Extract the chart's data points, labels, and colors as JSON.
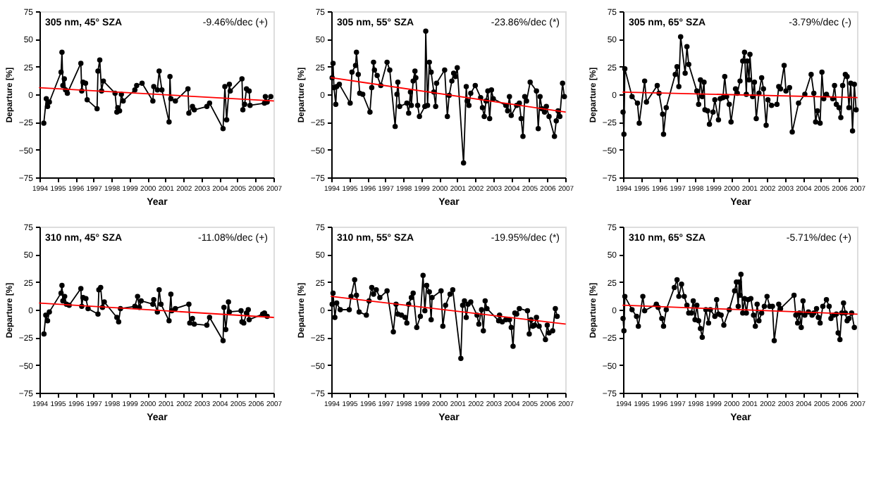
{
  "chart_data": [
    {
      "type": "line",
      "title": "305 nm, 45° SZA",
      "annotations": [
        "-9.46%/dec (+)"
      ],
      "xlabel": "Year",
      "ylabel": "Departure [%]",
      "xlim": [
        1994,
        2007
      ],
      "xticks": [
        1994,
        1995,
        1996,
        1997,
        1998,
        1999,
        2000,
        2001,
        2002,
        2003,
        2004,
        2005,
        2006,
        2007
      ],
      "ylim": [
        -75,
        75
      ],
      "yticks": [
        -75,
        -50,
        -25,
        0,
        25,
        50,
        75
      ],
      "grid": false,
      "legend": false,
      "series": [
        {
          "color": "#000000",
          "marker": "circle",
          "line_style": "solid",
          "x": [
            1994.24,
            1994.38,
            1994.45,
            1994.55,
            1995.2,
            1995.25,
            1995.3,
            1995.38,
            1995.45,
            1995.55,
            1996.3,
            1996.35,
            1996.42,
            1996.56,
            1996.65,
            1997.2,
            1997.25,
            1997.35,
            1997.45,
            1997.55,
            1998.2,
            1998.3,
            1998.35,
            1998.45,
            1998.55,
            1998.65,
            1999.3,
            1999.4,
            1999.7,
            2000.3,
            2000.35,
            2000.55,
            2000.65,
            2000.8,
            2001.2,
            2001.25,
            2001.3,
            2001.55,
            2002.25,
            2002.3,
            2002.5,
            2002.6,
            2003.3,
            2003.45,
            2004.2,
            2004.3,
            2004.4,
            2004.55,
            2004.6,
            2005.25,
            2005.3,
            2005.4,
            2005.5,
            2005.65,
            2005.7,
            2006.5,
            2006.55,
            2006.65,
            2006.85
          ],
          "values": [
            -26,
            -4,
            -11,
            -7,
            20,
            38,
            8,
            14,
            4,
            1,
            28,
            3,
            11,
            10,
            -5,
            -13,
            21,
            31,
            3,
            12,
            1,
            -16,
            -12,
            -15,
            0,
            -6,
            4,
            8,
            10,
            -6,
            7,
            4,
            21,
            4,
            -25,
            16,
            -4,
            -6,
            5,
            -17,
            -11,
            -14,
            -11,
            -8,
            -31,
            7,
            -23,
            9,
            3,
            14,
            -14,
            -9,
            5,
            3,
            -10,
            -8,
            -2,
            -7,
            -2
          ]
        },
        {
          "type": "line",
          "color": "#ff0000",
          "marker": "none",
          "x": [
            1994,
            2007
          ],
          "values": [
            6,
            -6
          ]
        }
      ]
    },
    {
      "type": "line",
      "title": "305 nm, 55° SZA",
      "annotations": [
        "-23.86%/dec (*)"
      ],
      "xlabel": "Year",
      "ylabel": "Departure [%]",
      "xlim": [
        1994,
        2007
      ],
      "xticks": [
        1994,
        1995,
        1996,
        1997,
        1998,
        1999,
        2000,
        2001,
        2002,
        2003,
        2004,
        2005,
        2006,
        2007
      ],
      "ylim": [
        -75,
        75
      ],
      "yticks": [
        -75,
        -50,
        -25,
        0,
        25,
        50,
        75
      ],
      "grid": false,
      "legend": false,
      "series": [
        {
          "color": "#000000",
          "marker": "circle",
          "line_style": "solid",
          "x": [
            1994.05,
            1994.1,
            1994.15,
            1994.25,
            1994.3,
            1994.45,
            1995.05,
            1995.15,
            1995.35,
            1995.4,
            1995.5,
            1995.58,
            1995.75,
            1996.15,
            1996.25,
            1996.35,
            1996.4,
            1996.55,
            1996.75,
            1997.1,
            1997.25,
            1997.55,
            1997.65,
            1997.7,
            1997.8,
            1998.2,
            1998.3,
            1998.4,
            1998.45,
            1998.55,
            1998.65,
            1998.7,
            1998.8,
            1998.9,
            1999.2,
            1999.25,
            1999.35,
            1999.45,
            1999.55,
            1999.7,
            1999.8,
            1999.85,
            2000.3,
            2000.45,
            2000.55,
            2000.7,
            2000.8,
            2000.9,
            2001.0,
            2001.35,
            2001.5,
            2001.55,
            2001.65,
            2001.75,
            2002.0,
            2002.3,
            2002.4,
            2002.5,
            2002.6,
            2002.7,
            2002.8,
            2002.9,
            2003.0,
            2003.7,
            2003.8,
            2003.9,
            2004.0,
            2004.3,
            2004.45,
            2004.55,
            2004.65,
            2004.75,
            2004.85,
            2005.05,
            2005.4,
            2005.5,
            2005.6,
            2005.7,
            2005.85,
            2005.95,
            2006.1,
            2006.4,
            2006.5,
            2006.6,
            2006.7,
            2006.85,
            2006.95
          ],
          "values": [
            15,
            28,
            6,
            -9,
            7,
            9,
            -8,
            20,
            26,
            38,
            18,
            1,
            0,
            -16,
            6,
            29,
            22,
            17,
            8,
            29,
            22,
            -29,
            0,
            11,
            -11,
            -8,
            -17,
            2,
            -10,
            12,
            21,
            15,
            -10,
            -20,
            -11,
            57,
            -10,
            29,
            20,
            2,
            -11,
            10,
            22,
            -20,
            -1,
            12,
            19,
            16,
            24,
            -62,
            7,
            -6,
            -10,
            1,
            8,
            -3,
            -12,
            -20,
            -6,
            3,
            -22,
            4,
            -4,
            -10,
            -15,
            -2,
            -19,
            -10,
            -8,
            -22,
            -38,
            -2,
            -6,
            11,
            3,
            -31,
            -2,
            -13,
            -16,
            -11,
            -20,
            -38,
            -24,
            -15,
            -20,
            10,
            -2
          ]
        },
        {
          "type": "line",
          "color": "#ff0000",
          "marker": "none",
          "x": [
            1994,
            2007
          ],
          "values": [
            15,
            -16
          ]
        }
      ]
    },
    {
      "type": "line",
      "title": "305 nm, 65° SZA",
      "annotations": [
        "-3.79%/dec (-)"
      ],
      "xlabel": "Year",
      "ylabel": "Departure [%]",
      "xlim": [
        1994,
        2007
      ],
      "xticks": [
        1994,
        1995,
        1996,
        1997,
        1998,
        1999,
        2000,
        2001,
        2002,
        2003,
        2004,
        2005,
        2006,
        2007
      ],
      "ylim": [
        -75,
        75
      ],
      "yticks": [
        -75,
        -50,
        -25,
        0,
        25,
        50,
        75
      ],
      "grid": false,
      "legend": false,
      "series": [
        {
          "color": "#000000",
          "marker": "circle",
          "line_style": "solid",
          "x": [
            1994.0,
            1994.05,
            1994.1,
            1994.5,
            1994.8,
            1994.9,
            1995.2,
            1995.3,
            1995.9,
            1996.0,
            1996.2,
            1996.25,
            1996.4,
            1996.9,
            1997.0,
            1997.1,
            1997.2,
            1997.45,
            1997.55,
            1997.65,
            1998.1,
            1998.2,
            1998.3,
            1998.4,
            1998.5,
            1998.55,
            1998.7,
            1998.8,
            1999.0,
            1999.1,
            1999.3,
            1999.4,
            1999.55,
            1999.65,
            1999.75,
            1999.9,
            2000.0,
            2000.25,
            2000.35,
            2000.5,
            2000.65,
            2000.75,
            2000.85,
            2000.9,
            2001.0,
            2001.05,
            2001.2,
            2001.3,
            2001.4,
            2001.55,
            2001.7,
            2001.8,
            2001.95,
            2002.05,
            2002.25,
            2002.55,
            2002.65,
            2002.75,
            2002.95,
            2003.05,
            2003.25,
            2003.4,
            2003.75,
            2004.1,
            2004.45,
            2004.6,
            2004.7,
            2004.8,
            2004.95,
            2005.05,
            2005.15,
            2005.3,
            2005.65,
            2005.75,
            2005.85,
            2006.0,
            2006.1,
            2006.2,
            2006.35,
            2006.45,
            2006.55,
            2006.65,
            2006.75,
            2006.85,
            2006.95
          ],
          "values": [
            -16,
            -36,
            23,
            -2,
            -8,
            -26,
            12,
            -7,
            8,
            1,
            -18,
            -36,
            -12,
            18,
            25,
            7,
            52,
            19,
            43,
            27,
            3,
            -9,
            13,
            -2,
            11,
            -14,
            -15,
            -27,
            -16,
            -5,
            -23,
            -4,
            -3,
            16,
            -2,
            -9,
            -25,
            5,
            1,
            12,
            30,
            38,
            0,
            30,
            13,
            36,
            -2,
            11,
            -22,
            1,
            15,
            5,
            -28,
            -5,
            -10,
            -9,
            7,
            5,
            26,
            3,
            6,
            -34,
            -8,
            0,
            18,
            1,
            -25,
            -15,
            -26,
            20,
            -4,
            0,
            -4,
            8,
            -9,
            -12,
            -21,
            8,
            18,
            16,
            -12,
            10,
            -33,
            9,
            -14
          ]
        },
        {
          "type": "line",
          "color": "#ff0000",
          "marker": "none",
          "x": [
            1994,
            2007
          ],
          "values": [
            2,
            -3
          ]
        }
      ]
    },
    {
      "type": "line",
      "title": "310 nm, 45° SZA",
      "annotations": [
        "-11.08%/dec (+)"
      ],
      "xlabel": "Year",
      "ylabel": "Departure [%]",
      "xlim": [
        1994,
        2007
      ],
      "xticks": [
        1994,
        1995,
        1996,
        1997,
        1998,
        1999,
        2000,
        2001,
        2002,
        2003,
        2004,
        2005,
        2006,
        2007
      ],
      "ylim": [
        -75,
        75
      ],
      "yticks": [
        -75,
        -50,
        -25,
        0,
        25,
        50,
        75
      ],
      "grid": false,
      "legend": false,
      "series": [
        {
          "color": "#000000",
          "marker": "circle",
          "line_style": "solid",
          "x": [
            1994.25,
            1994.35,
            1994.45,
            1994.55,
            1995.2,
            1995.25,
            1995.3,
            1995.4,
            1995.5,
            1995.65,
            1996.3,
            1996.35,
            1996.42,
            1996.58,
            1996.7,
            1997.25,
            1997.3,
            1997.4,
            1997.5,
            1997.6,
            1998.3,
            1998.4,
            1998.5,
            1999.3,
            1999.45,
            1999.55,
            1999.65,
            2000.3,
            2000.35,
            2000.55,
            2000.65,
            2000.75,
            2001.2,
            2001.3,
            2001.35,
            2001.55,
            2002.3,
            2002.35,
            2002.5,
            2002.6,
            2003.3,
            2003.45,
            2004.2,
            2004.25,
            2004.35,
            2004.5,
            2004.55,
            2005.2,
            2005.25,
            2005.35,
            2005.5,
            2005.6,
            2005.65,
            2006.4,
            2006.5,
            2006.65
          ],
          "values": [
            -22,
            -5,
            -10,
            -2,
            15,
            22,
            8,
            12,
            5,
            4,
            19,
            3,
            11,
            10,
            1,
            -4,
            18,
            20,
            2,
            7,
            -7,
            -11,
            1,
            3,
            12,
            2,
            8,
            5,
            9,
            -2,
            18,
            5,
            -10,
            14,
            -1,
            1,
            5,
            -12,
            -8,
            -13,
            -14,
            -7,
            -28,
            2,
            -18,
            7,
            -2,
            -1,
            -11,
            -12,
            -3,
            0,
            -9,
            -4,
            -3,
            -6
          ]
        },
        {
          "type": "line",
          "color": "#ff0000",
          "marker": "none",
          "x": [
            1994,
            2007
          ],
          "values": [
            6,
            -7
          ]
        }
      ]
    },
    {
      "type": "line",
      "title": "310 nm, 55° SZA",
      "annotations": [
        "-19.95%/dec (*)"
      ],
      "xlabel": "Year",
      "ylabel": "Departure [%]",
      "xlim": [
        1994,
        2007
      ],
      "xticks": [
        1994,
        1995,
        1996,
        1997,
        1998,
        1999,
        2000,
        2001,
        2002,
        2003,
        2004,
        2005,
        2006,
        2007
      ],
      "ylim": [
        -75,
        75
      ],
      "yticks": [
        -75,
        -50,
        -25,
        0,
        25,
        50,
        75
      ],
      "grid": false,
      "legend": false,
      "series": [
        {
          "color": "#000000",
          "marker": "circle",
          "line_style": "solid",
          "x": [
            1994.05,
            1994.1,
            1994.2,
            1994.3,
            1994.5,
            1995.0,
            1995.1,
            1995.3,
            1995.4,
            1995.55,
            1995.95,
            1996.1,
            1996.25,
            1996.35,
            1996.5,
            1996.7,
            1997.1,
            1997.45,
            1997.6,
            1997.7,
            1997.9,
            1998.1,
            1998.2,
            1998.3,
            1998.45,
            1998.55,
            1998.75,
            1998.95,
            1999.1,
            1999.2,
            1999.3,
            1999.45,
            1999.55,
            1999.6,
            2000.1,
            2000.2,
            2000.35,
            2000.6,
            2000.75,
            2001.2,
            2001.3,
            2001.4,
            2001.5,
            2001.6,
            2001.75,
            2002.1,
            2002.2,
            2002.35,
            2002.45,
            2002.55,
            2002.65,
            2003.3,
            2003.35,
            2003.5,
            2003.7,
            2003.9,
            2004.0,
            2004.1,
            2004.2,
            2004.3,
            2004.45,
            2004.9,
            2005.0,
            2005.1,
            2005.2,
            2005.3,
            2005.4,
            2005.55,
            2005.9,
            2006.0,
            2006.1,
            2006.3,
            2006.45,
            2006.55
          ],
          "values": [
            5,
            15,
            -7,
            6,
            0,
            0,
            12,
            27,
            13,
            -2,
            -5,
            8,
            20,
            14,
            18,
            11,
            17,
            -20,
            5,
            -4,
            -5,
            -7,
            -12,
            5,
            11,
            15,
            -16,
            -6,
            31,
            -1,
            22,
            16,
            -9,
            11,
            17,
            -15,
            4,
            14,
            18,
            -44,
            4,
            8,
            -7,
            5,
            7,
            -5,
            -13,
            0,
            -19,
            8,
            1,
            -10,
            -5,
            -11,
            -9,
            -9,
            -16,
            -33,
            -3,
            -4,
            1,
            -1,
            -22,
            -9,
            -15,
            -14,
            -7,
            -15,
            -27,
            -14,
            -21,
            -19,
            1,
            -6
          ]
        },
        {
          "type": "line",
          "color": "#ff0000",
          "marker": "none",
          "x": [
            1994,
            2007
          ],
          "values": [
            12,
            -13
          ]
        }
      ]
    },
    {
      "type": "line",
      "title": "310 nm, 65° SZA",
      "annotations": [
        "-5.71%/dec (+)"
      ],
      "xlabel": "Year",
      "ylabel": "Departure [%]",
      "xlim": [
        1994,
        2007
      ],
      "xticks": [
        1994,
        1995,
        1996,
        1997,
        1998,
        1999,
        2000,
        2001,
        2002,
        2003,
        2004,
        2005,
        2006,
        2007
      ],
      "ylim": [
        -75,
        75
      ],
      "yticks": [
        -75,
        -50,
        -25,
        0,
        25,
        50,
        75
      ],
      "grid": false,
      "legend": false,
      "series": [
        {
          "color": "#000000",
          "marker": "circle",
          "line_style": "solid",
          "x": [
            1994.0,
            1994.05,
            1994.1,
            1994.5,
            1994.75,
            1994.85,
            1995.1,
            1995.2,
            1995.85,
            1995.95,
            1996.15,
            1996.25,
            1996.4,
            1996.85,
            1997.0,
            1997.1,
            1997.25,
            1997.4,
            1997.55,
            1997.65,
            1997.8,
            1997.9,
            1998.0,
            1998.1,
            1998.2,
            1998.3,
            1998.4,
            1998.6,
            1998.75,
            1998.85,
            1999.1,
            1999.2,
            1999.3,
            1999.45,
            1999.6,
            1999.9,
            2000.2,
            2000.3,
            2000.4,
            2000.45,
            2000.5,
            2000.55,
            2000.65,
            2000.75,
            2000.85,
            2000.95,
            2001.1,
            2001.25,
            2001.35,
            2001.45,
            2001.55,
            2001.7,
            2001.85,
            2002.0,
            2002.15,
            2002.3,
            2002.4,
            2002.65,
            2002.75,
            2003.5,
            2003.6,
            2003.7,
            2003.8,
            2003.9,
            2004.0,
            2004.1,
            2004.3,
            2004.5,
            2004.6,
            2004.75,
            2004.85,
            2004.95,
            2005.1,
            2005.3,
            2005.45,
            2005.55,
            2005.7,
            2005.85,
            2005.95,
            2006.05,
            2006.15,
            2006.25,
            2006.35,
            2006.45,
            2006.55,
            2006.7,
            2006.85
          ],
          "values": [
            -8,
            -19,
            12,
            0,
            -6,
            -15,
            12,
            -1,
            5,
            2,
            -8,
            -15,
            0,
            20,
            27,
            12,
            23,
            12,
            4,
            -3,
            -3,
            8,
            -9,
            4,
            -10,
            -17,
            -25,
            0,
            -12,
            0,
            -6,
            9,
            -4,
            -5,
            -14,
            0,
            17,
            25,
            3,
            25,
            13,
            32,
            -3,
            10,
            -3,
            9,
            10,
            -5,
            -15,
            5,
            -10,
            -3,
            3,
            12,
            3,
            3,
            -28,
            5,
            1,
            13,
            -5,
            -12,
            -3,
            -16,
            8,
            -5,
            -2,
            -5,
            -3,
            1,
            -7,
            -12,
            3,
            9,
            3,
            -8,
            -5,
            -4,
            -21,
            -27,
            -3,
            6,
            -3,
            -10,
            -8,
            -3,
            -16
          ]
        },
        {
          "type": "line",
          "color": "#ff0000",
          "marker": "none",
          "x": [
            1994,
            2007
          ],
          "values": [
            4,
            -4
          ]
        }
      ]
    }
  ]
}
